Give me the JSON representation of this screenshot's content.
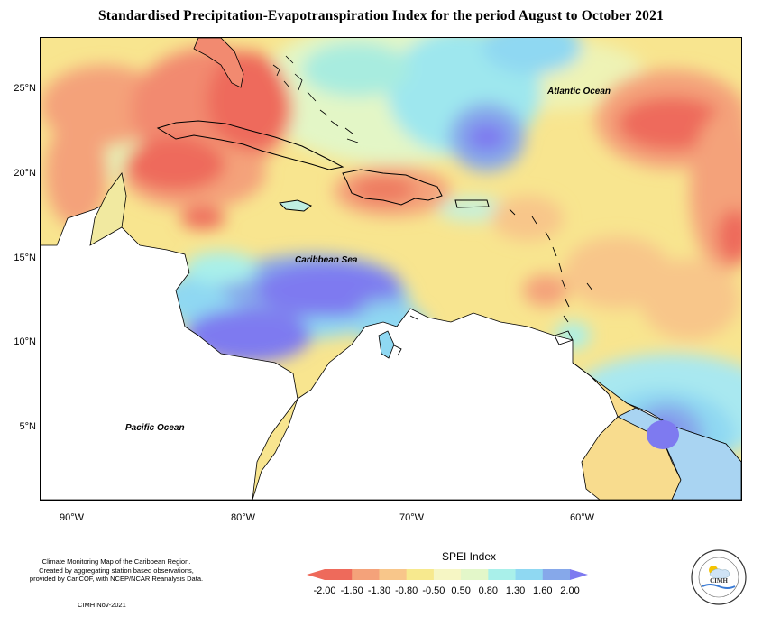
{
  "title": "Standardised Precipitation-Evapotranspiration Index for the period August to October 2021",
  "map": {
    "labels": {
      "atlantic": "Atlantic Ocean",
      "caribbean": "Caribbean Sea",
      "pacific": "Pacific Ocean"
    },
    "lat_ticks": [
      "25°N",
      "20°N",
      "15°N",
      "10°N",
      "5°N"
    ],
    "lon_ticks": [
      "90°W",
      "80°W",
      "70°W",
      "60°W"
    ],
    "extent": {
      "lon_min": -92.5,
      "lon_max": -51,
      "lat_min": 1.5,
      "lat_max": 28
    }
  },
  "legend": {
    "title": "SPEI Index",
    "ticks": [
      "-2.00",
      "-1.60",
      "-1.30",
      "-0.80",
      "-0.50",
      "0.50",
      "0.80",
      "1.30",
      "1.60",
      "2.00"
    ],
    "colors": [
      "#ee6a5b",
      "#f4a27a",
      "#f8c68a",
      "#f7e98e",
      "#f6f6c4",
      "#e3f7c9",
      "#a9f0ea",
      "#8fd8f2",
      "#86a8ea",
      "#7e7af0"
    ]
  },
  "credits": {
    "line1": "Climate Monitoring Map of the Caribbean Region.",
    "line2": "Created by aggregating station based observations,",
    "line3": "provided by CariCOF, with NCEP/NCAR Reanalysis Data.",
    "date": "CIMH Nov-2021"
  },
  "logo": {
    "text": "CIMH",
    "ring_text": "Caribbean Institute for Meteorology and Hydrology"
  }
}
